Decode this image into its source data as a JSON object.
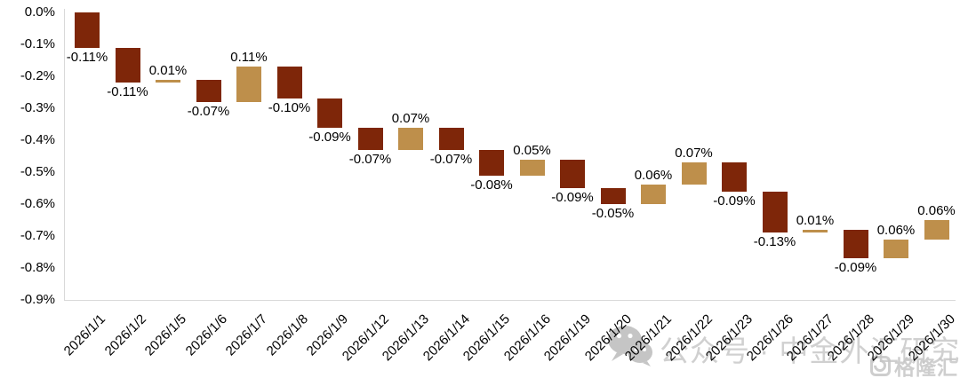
{
  "watermark": {
    "wechat_text": "公众号 · 中金外汇研究",
    "logo_text": "格隆汇"
  },
  "chart_data": {
    "type": "bar",
    "subtype": "waterfall",
    "title": "",
    "xlabel": "",
    "ylabel": "",
    "legend": "none",
    "grid": "off",
    "ylim": [
      -0.9,
      0.0
    ],
    "y_ticks": [
      "0.0%",
      "-0.1%",
      "-0.2%",
      "-0.3%",
      "-0.4%",
      "-0.5%",
      "-0.6%",
      "-0.7%",
      "-0.8%",
      "-0.9%"
    ],
    "categories": [
      "2026/1/1",
      "2026/1/2",
      "2026/1/5",
      "2026/1/6",
      "2026/1/7",
      "2026/1/8",
      "2026/1/9",
      "2026/1/12",
      "2026/1/13",
      "2026/1/14",
      "2026/1/15",
      "2026/1/16",
      "2026/1/19",
      "2026/1/20",
      "2026/1/21",
      "2026/1/22",
      "2026/1/23",
      "2026/1/26",
      "2026/1/27",
      "2026/1/28",
      "2026/1/29",
      "2026/1/30"
    ],
    "values": [
      -0.11,
      -0.11,
      0.01,
      -0.07,
      0.11,
      -0.1,
      -0.09,
      -0.07,
      0.07,
      -0.07,
      -0.08,
      0.05,
      -0.09,
      -0.05,
      0.06,
      0.07,
      -0.09,
      -0.13,
      0.01,
      -0.09,
      0.06,
      0.06
    ],
    "labels": [
      "-0.11%",
      "-0.11%",
      "0.01%",
      "-0.07%",
      "0.11%",
      "-0.10%",
      "-0.09%",
      "-0.07%",
      "0.07%",
      "-0.07%",
      "-0.08%",
      "0.05%",
      "-0.09%",
      "-0.05%",
      "0.06%",
      "0.07%",
      "-0.09%",
      "-0.13%",
      "0.01%",
      "-0.09%",
      "0.06%",
      "0.06%"
    ],
    "colors": {
      "negative": "#7E2609",
      "positive": "#BE8F4B",
      "axis": "#d9d9d9"
    }
  }
}
